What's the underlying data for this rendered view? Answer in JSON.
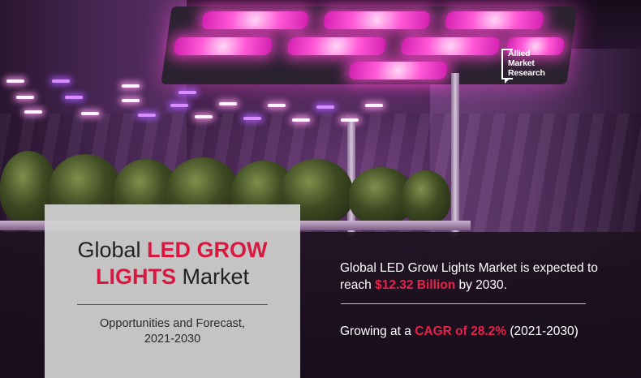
{
  "logo": {
    "line1": "Allied",
    "line2": "Market",
    "line3": "Research"
  },
  "card": {
    "title_part1": "Global ",
    "title_highlight1": "LED GROW",
    "title_highlight2": "LIGHTS",
    "title_part2": " Market",
    "subtitle_line1": "Opportunities and Forecast,",
    "subtitle_line2": "2021-2030"
  },
  "stats": {
    "expected_prefix": "Global LED Grow Lights Market is expected to reach ",
    "expected_value": "$12.32 Billion",
    "expected_suffix": " by 2030.",
    "cagr_prefix": "Growing at a ",
    "cagr_value": "CAGR of 28.2%",
    "cagr_suffix": " (2021-2030)"
  },
  "colors": {
    "accent": "#d9173f",
    "led_glow": "#ff5ad6",
    "band": "#1e1220",
    "card": "#d2d2d2"
  }
}
